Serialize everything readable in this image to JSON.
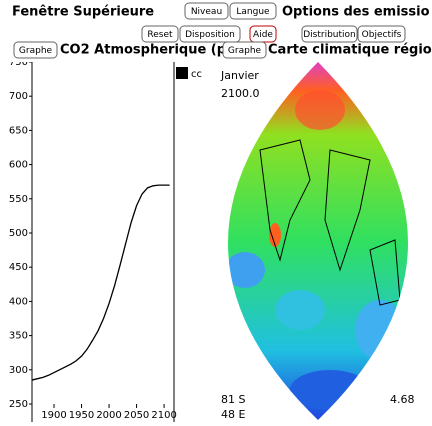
{
  "window_title": "Fenêtre Supérieure",
  "buttons": {
    "level": "Niveau",
    "language": "Langue",
    "reset": "Reset",
    "layout": "Disposition",
    "help": "Aide",
    "distribution": "Distribution",
    "objectives": "Objectifs"
  },
  "options_title": "Options des emissio",
  "co2_panel": {
    "type": "line",
    "button": "Graphe",
    "title": "CO2 Atmospherique (p",
    "legend": "cc",
    "color": "#000000",
    "x": [
      1860,
      1870,
      1880,
      1890,
      1900,
      1910,
      1920,
      1930,
      1940,
      1950,
      1960,
      1970,
      1980,
      1990,
      2000,
      2010,
      2020,
      2030,
      2040,
      2050,
      2060,
      2070,
      2080,
      2090,
      2100,
      2110
    ],
    "values": [
      285,
      287,
      289,
      292,
      296,
      300,
      304,
      308,
      313,
      320,
      330,
      343,
      357,
      375,
      397,
      423,
      453,
      484,
      515,
      540,
      557,
      566,
      569,
      570,
      570,
      570
    ],
    "xlim": [
      1860,
      2118
    ],
    "ylim": [
      250,
      750
    ],
    "xticks": [
      1900,
      1950,
      2000,
      2050,
      2100
    ],
    "yticks": [
      250,
      300,
      350,
      400,
      450,
      500,
      550,
      600,
      650,
      700,
      750
    ]
  },
  "map_panel": {
    "button": "Graphe",
    "title": "Carte climatique régio",
    "month": "Janvier",
    "year": "2100.0",
    "lat": "81 S",
    "lon": "48 E",
    "value": "4.68"
  }
}
